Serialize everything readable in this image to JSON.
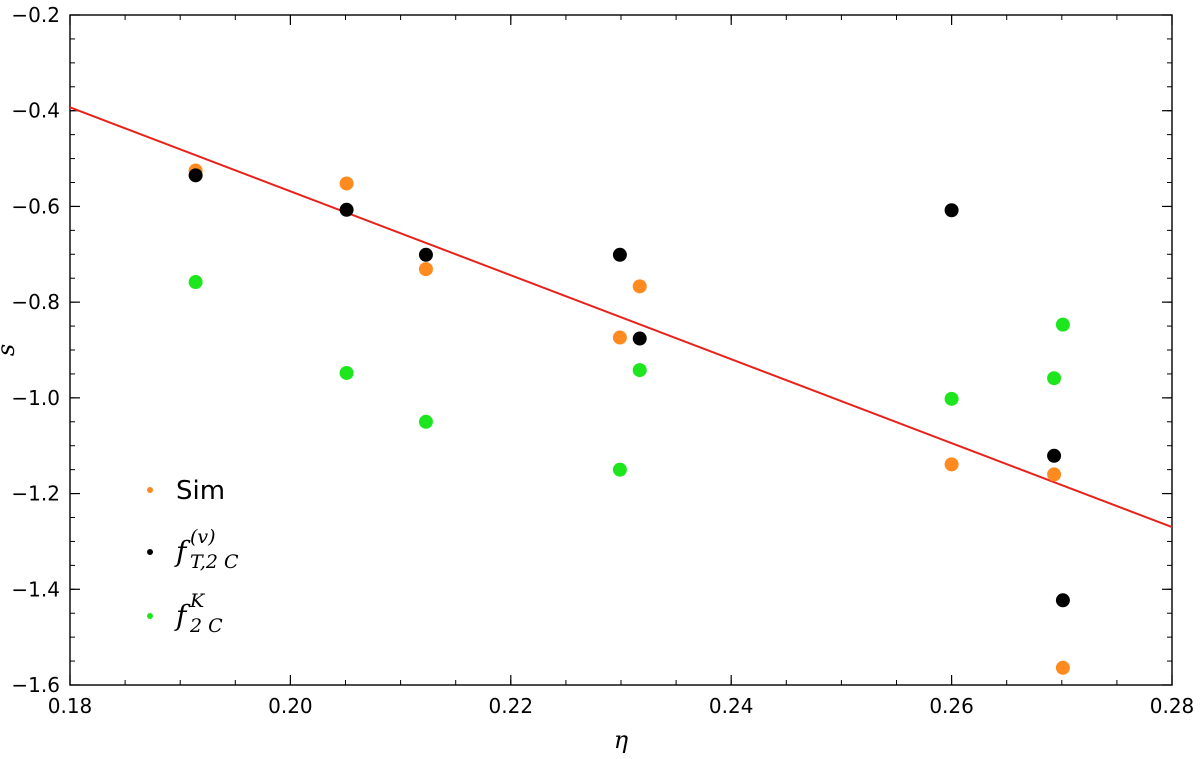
{
  "chart_data": {
    "type": "scatter",
    "title": "",
    "xlabel": "η",
    "ylabel": "s",
    "xlim": [
      0.18,
      0.28
    ],
    "ylim": [
      -1.6,
      -0.2
    ],
    "x_ticks": [
      0.18,
      0.2,
      0.22,
      0.24,
      0.26,
      0.28
    ],
    "x_tick_labels": [
      "0.18",
      "0.20",
      "0.22",
      "0.24",
      "0.26",
      "0.28"
    ],
    "y_ticks": [
      -1.6,
      -1.4,
      -1.2,
      -1.0,
      -0.8,
      -0.6,
      -0.4,
      -0.2
    ],
    "y_tick_labels": [
      "−1.6",
      "−1.4",
      "−1.2",
      "−1.0",
      "−0.8",
      "−0.6",
      "−0.4",
      "−0.2"
    ],
    "grid": false,
    "legend_position": "bottom-left",
    "series": [
      {
        "name": "Sim",
        "color": "#ff8a1f",
        "points": [
          [
            0.1914,
            -0.525
          ],
          [
            0.2051,
            -0.552
          ],
          [
            0.2123,
            -0.731
          ],
          [
            0.2299,
            -0.874
          ],
          [
            0.2317,
            -0.767
          ],
          [
            0.26,
            -1.139
          ],
          [
            0.2693,
            -1.16
          ],
          [
            0.2701,
            -1.564
          ]
        ]
      },
      {
        "name": "f_{T,2 C}^{(v)}",
        "legend_main": "f",
        "legend_sub": "T,2 C",
        "legend_sup": "(v)",
        "color": "#000000",
        "points": [
          [
            0.1914,
            -0.535
          ],
          [
            0.2051,
            -0.607
          ],
          [
            0.2123,
            -0.701
          ],
          [
            0.2299,
            -0.701
          ],
          [
            0.2317,
            -0.876
          ],
          [
            0.26,
            -0.608
          ],
          [
            0.2693,
            -1.121
          ],
          [
            0.2701,
            -1.423
          ]
        ]
      },
      {
        "name": "f_{2 C}^{K}",
        "legend_main": "f",
        "legend_sub": "2 C",
        "legend_sup": "K",
        "color": "#1ee61e",
        "points": [
          [
            0.1914,
            -0.758
          ],
          [
            0.2051,
            -0.948
          ],
          [
            0.2123,
            -1.05
          ],
          [
            0.2299,
            -1.15
          ],
          [
            0.2317,
            -0.942
          ],
          [
            0.26,
            -1.002
          ],
          [
            0.2693,
            -0.959
          ],
          [
            0.2701,
            -0.847
          ]
        ]
      }
    ],
    "fit_line": {
      "color": "#e8221a",
      "points": [
        [
          0.18,
          -0.393
        ],
        [
          0.28,
          -1.27
        ]
      ]
    }
  }
}
